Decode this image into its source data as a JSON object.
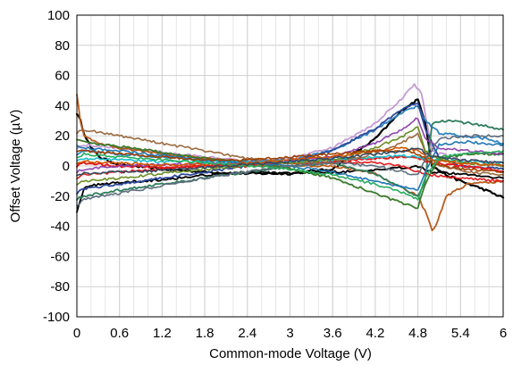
{
  "chart_data": {
    "type": "line",
    "title": "",
    "xlabel": "Common-mode Voltage (V)",
    "ylabel": "Offset Voltage (µV)",
    "xlim": [
      0,
      6
    ],
    "ylim": [
      -100,
      100
    ],
    "xticks": [
      0,
      0.6,
      1.2,
      1.8,
      2.4,
      3,
      3.6,
      4.2,
      4.8,
      5.4,
      6
    ],
    "xtick_labels": [
      "0",
      "0.6",
      "1.2",
      "1.8",
      "2.4",
      "3",
      "3.6",
      "4.2",
      "4.8",
      "5.4",
      "6"
    ],
    "yticks": [
      -100,
      -80,
      -60,
      -40,
      -20,
      0,
      20,
      40,
      60,
      80,
      100
    ],
    "ytick_labels": [
      "-100",
      "-80",
      "-60",
      "-40",
      "-20",
      "0",
      "20",
      "40",
      "60",
      "80",
      "100"
    ],
    "minor_x_step": 0.2,
    "grid": true,
    "legend": "none",
    "series": [
      {
        "color": "#000000",
        "width": 2.2,
        "x": [
          0,
          0.05,
          0.1,
          0.2,
          0.35,
          0.6,
          1.2,
          1.8,
          2.4,
          3,
          3.6,
          4.2,
          4.6,
          4.8,
          4.9,
          5.0,
          5.2,
          5.4,
          5.7,
          6
        ],
        "y": [
          35,
          30,
          22,
          12,
          5,
          1,
          -2,
          -4,
          -5,
          -5,
          -2,
          18,
          38,
          44,
          30,
          0,
          -6,
          -10,
          -15,
          -21
        ]
      },
      {
        "color": "#000000",
        "width": 1.8,
        "x": [
          0,
          0.05,
          0.1,
          0.3,
          0.6,
          1.2,
          1.8,
          2.4,
          3,
          3.6,
          4.2,
          4.6,
          4.8,
          4.9,
          5.0,
          5.3,
          5.6,
          6
        ],
        "y": [
          -30,
          -22,
          -15,
          -12,
          -11,
          -9,
          -6,
          -4,
          -5,
          -4,
          -3,
          -1,
          0,
          -2,
          -4,
          -5,
          -6,
          -8
        ]
      },
      {
        "color": "#c39bd3",
        "width": 1.8,
        "x": [
          0,
          0.1,
          0.6,
          1.2,
          1.8,
          2.4,
          3,
          3.6,
          4.2,
          4.6,
          4.75,
          4.85,
          5.0,
          5.4,
          6
        ],
        "y": [
          12,
          14,
          12,
          9,
          6,
          3,
          5,
          12,
          28,
          46,
          54,
          48,
          10,
          4,
          2
        ]
      },
      {
        "color": "#2e86c1",
        "width": 1.8,
        "x": [
          0,
          0.1,
          0.6,
          1.2,
          1.8,
          2.4,
          3,
          3.6,
          4.2,
          4.6,
          4.8,
          4.9,
          5.1,
          5.4,
          5.8,
          6
        ],
        "y": [
          8,
          10,
          8,
          6,
          4,
          3,
          4,
          10,
          24,
          36,
          40,
          30,
          22,
          20,
          18,
          15
        ]
      },
      {
        "color": "#2e4a9a",
        "width": 1.8,
        "x": [
          0,
          0.1,
          0.6,
          1.2,
          1.8,
          2.4,
          3,
          3.6,
          4.2,
          4.6,
          4.8,
          4.9,
          5.1,
          5.4,
          6
        ],
        "y": [
          -18,
          -15,
          -12,
          -8,
          -4,
          0,
          3,
          10,
          25,
          38,
          42,
          25,
          5,
          0,
          -2
        ]
      },
      {
        "color": "#b85c1e",
        "width": 1.8,
        "x": [
          0,
          0.05,
          0.1,
          0.3,
          0.6,
          1.2,
          1.8,
          2.4,
          3,
          3.6,
          4.2,
          4.6,
          4.8,
          4.9,
          5.0,
          5.05,
          5.2,
          5.5,
          6
        ],
        "y": [
          48,
          30,
          20,
          15,
          12,
          8,
          5,
          2,
          0,
          0,
          -5,
          -15,
          -20,
          -30,
          -42,
          -40,
          -20,
          -12,
          -10
        ]
      },
      {
        "color": "#2e7d5b",
        "width": 1.8,
        "x": [
          0,
          0.1,
          0.6,
          1.2,
          1.8,
          2.4,
          3,
          3.6,
          4.2,
          4.6,
          4.8,
          4.9,
          5.0,
          5.2,
          5.6,
          6
        ],
        "y": [
          -22,
          -20,
          -16,
          -12,
          -8,
          -4,
          0,
          2,
          -5,
          -15,
          -20,
          -10,
          28,
          30,
          28,
          24
        ]
      },
      {
        "color": "#3a7a2a",
        "width": 1.8,
        "x": [
          0,
          0.1,
          0.6,
          1.2,
          1.8,
          2.4,
          3,
          3.6,
          4.2,
          4.6,
          4.8,
          4.9,
          5.1,
          5.5,
          6
        ],
        "y": [
          18,
          16,
          13,
          9,
          5,
          2,
          -2,
          -8,
          -18,
          -25,
          -28,
          -12,
          5,
          8,
          8
        ]
      },
      {
        "color": "#e31a1c",
        "width": 2.0,
        "x": [
          0,
          0.1,
          0.6,
          1.2,
          1.8,
          2.4,
          3,
          3.6,
          4.2,
          4.6,
          4.8,
          5.0,
          5.4,
          5.8,
          6
        ],
        "y": [
          0,
          2,
          0,
          -1,
          0,
          0,
          2,
          3,
          5,
          6,
          5,
          2,
          0,
          -2,
          -4
        ]
      },
      {
        "color": "#e31a1c",
        "width": 1.6,
        "x": [
          0,
          0.1,
          0.6,
          1.2,
          1.8,
          2.4,
          3,
          3.6,
          4.2,
          4.6,
          4.8,
          5.0,
          5.4,
          6
        ],
        "y": [
          -8,
          -6,
          -4,
          -2,
          0,
          1,
          2,
          3,
          2,
          0,
          -4,
          -6,
          -8,
          -10
        ]
      },
      {
        "color": "#8e44ad",
        "width": 1.6,
        "x": [
          0,
          0.1,
          0.6,
          1.2,
          1.8,
          2.4,
          3,
          3.6,
          4.2,
          4.6,
          4.8,
          4.9,
          5.1,
          5.5,
          6
        ],
        "y": [
          -4,
          -2,
          0,
          1,
          2,
          2,
          3,
          6,
          15,
          25,
          32,
          18,
          12,
          10,
          8
        ]
      },
      {
        "color": "#17becf",
        "width": 1.6,
        "x": [
          0,
          0.1,
          0.6,
          1.2,
          1.8,
          2.4,
          3,
          3.6,
          4.2,
          4.6,
          4.8,
          5.0,
          5.4,
          6
        ],
        "y": [
          4,
          5,
          4,
          3,
          3,
          2,
          3,
          4,
          6,
          7,
          6,
          4,
          3,
          2
        ]
      },
      {
        "color": "#9c6b3f",
        "width": 1.6,
        "x": [
          0,
          0.1,
          0.6,
          1.2,
          1.8,
          2.4,
          3,
          3.6,
          4.2,
          4.6,
          4.8,
          4.9,
          5.1,
          5.5,
          6
        ],
        "y": [
          22,
          24,
          20,
          15,
          10,
          5,
          2,
          2,
          8,
          16,
          22,
          10,
          0,
          -4,
          -6
        ]
      },
      {
        "color": "#6b8e23",
        "width": 1.6,
        "x": [
          0,
          0.1,
          0.6,
          1.2,
          1.8,
          2.4,
          3,
          3.6,
          4.2,
          4.6,
          4.8,
          4.9,
          5.1,
          5.5,
          6
        ],
        "y": [
          -12,
          -10,
          -8,
          -5,
          -2,
          0,
          2,
          4,
          12,
          20,
          26,
          10,
          4,
          2,
          0
        ]
      },
      {
        "color": "#1f77b4",
        "width": 1.6,
        "x": [
          0,
          0.1,
          0.6,
          1.2,
          1.8,
          2.4,
          3,
          3.6,
          4.2,
          4.6,
          4.8,
          4.9,
          5.1,
          5.5,
          6
        ],
        "y": [
          14,
          12,
          10,
          7,
          4,
          2,
          0,
          -4,
          -10,
          -14,
          -16,
          -4,
          14,
          16,
          14
        ]
      },
      {
        "color": "#d35400",
        "width": 1.6,
        "x": [
          0,
          0.1,
          0.6,
          1.2,
          1.8,
          2.4,
          3,
          3.6,
          4.2,
          4.6,
          4.8,
          5.0,
          5.4,
          6
        ],
        "y": [
          2,
          3,
          2,
          1,
          1,
          2,
          4,
          6,
          10,
          12,
          10,
          4,
          2,
          0
        ]
      },
      {
        "color": "#5d6d7e",
        "width": 1.6,
        "x": [
          0,
          0.1,
          0.6,
          1.2,
          1.8,
          2.4,
          3,
          3.6,
          4.2,
          4.6,
          4.8,
          4.9,
          5.1,
          5.5,
          6
        ],
        "y": [
          -26,
          -22,
          -18,
          -13,
          -8,
          -4,
          0,
          2,
          0,
          -4,
          -6,
          4,
          18,
          20,
          20
        ]
      },
      {
        "color": "#a04000",
        "width": 1.6,
        "x": [
          0,
          0.1,
          0.6,
          1.2,
          1.8,
          2.4,
          3,
          3.6,
          4.2,
          4.6,
          4.8,
          5.0,
          5.4,
          6
        ],
        "y": [
          10,
          10,
          8,
          6,
          4,
          4,
          6,
          8,
          10,
          10,
          8,
          2,
          -2,
          -4
        ]
      },
      {
        "color": "#27ae60",
        "width": 1.6,
        "x": [
          0,
          0.1,
          0.6,
          1.2,
          1.8,
          2.4,
          3,
          3.6,
          4.2,
          4.6,
          4.8,
          4.9,
          5.1,
          5.5,
          6
        ],
        "y": [
          6,
          8,
          6,
          4,
          2,
          0,
          -2,
          -6,
          -12,
          -18,
          -22,
          -8,
          6,
          8,
          10
        ]
      },
      {
        "color": "#34495e",
        "width": 1.6,
        "x": [
          0,
          0.1,
          0.6,
          1.2,
          1.8,
          2.4,
          3,
          3.6,
          4.2,
          4.6,
          4.8,
          5.0,
          5.4,
          6
        ],
        "y": [
          -6,
          -5,
          -4,
          -3,
          -1,
          1,
          3,
          5,
          8,
          10,
          12,
          6,
          4,
          2
        ]
      }
    ]
  }
}
